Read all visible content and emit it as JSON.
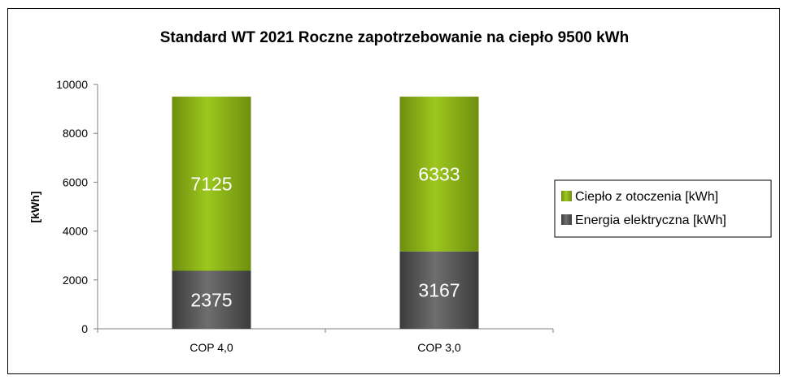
{
  "chart_data": {
    "type": "bar",
    "stacked": true,
    "title": "Standard WT 2021 Roczne zapotrzebowanie na ciepło 9500 kWh",
    "xlabel": "",
    "ylabel": "[kWh]",
    "ylim": [
      0,
      10000
    ],
    "yticks": [
      0,
      2000,
      4000,
      6000,
      8000,
      10000
    ],
    "yticks_labels": [
      "0",
      "2000",
      "4000",
      "6000",
      "8000",
      "10000"
    ],
    "categories": [
      "COP 4,0",
      "COP 3,0"
    ],
    "series": [
      {
        "name": "Energia elektryczna [kWh]",
        "values": [
          2375,
          3167
        ],
        "color": "#5a5a5a",
        "labels": [
          "2375",
          "3167"
        ]
      },
      {
        "name": "Ciepło z otoczenia [kWh]",
        "values": [
          7125,
          6333
        ],
        "color": "#8ab31a",
        "labels": [
          "7125",
          "6333"
        ]
      }
    ],
    "legend_order": [
      "Ciepło z otoczenia [kWh]",
      "Energia elektryczna [kWh]"
    ],
    "legend_position": "right",
    "grid": false
  }
}
